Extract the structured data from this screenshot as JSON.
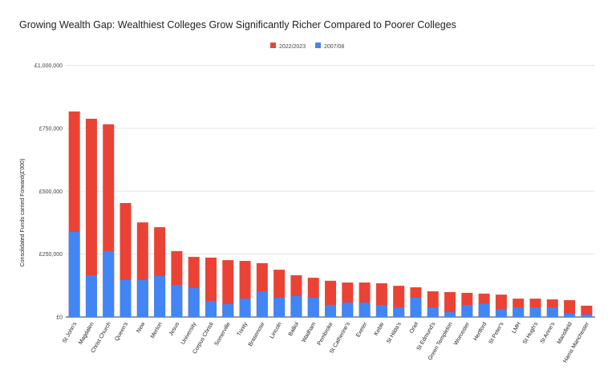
{
  "chart_data": {
    "type": "bar",
    "title": "Growing Wealth Gap: Wealthiest Colleges Grow Significantly Richer Compared to Poorer Colleges",
    "xlabel": "",
    "ylabel": "Consolidated Funds carried Forward(£'000)",
    "ylim": [
      0,
      1000000
    ],
    "yticks": [
      0,
      250000,
      500000,
      750000,
      1000000
    ],
    "ytick_labels": [
      "£0",
      "£250,000",
      "£500,000",
      "£750,000",
      "£1,000,000"
    ],
    "grid": true,
    "legend_placement": "top-center",
    "categories": [
      "St John's",
      "Magdalen",
      "Christ Church",
      "Queen's",
      "New",
      "Merton",
      "Jesus",
      "University",
      "Corpus Christi",
      "Somerville",
      "Trinity",
      "Brasenose",
      "Lincoln",
      "Balliol",
      "Wadham",
      "Pembroke",
      "St Catherine's",
      "Exeter",
      "Keble",
      "St Hilda's",
      "Oriel",
      "St Edmund's",
      "Green Templeton",
      "Worcester",
      "Hertford",
      "St Peter's",
      "LMH",
      "St Hugh's",
      "St Anne's",
      "Mansfield",
      "Harris Manchester"
    ],
    "series": [
      {
        "name": "2022/2023",
        "color": "#ea4335",
        "values": [
          817000,
          788000,
          766000,
          453000,
          376000,
          357000,
          262000,
          239000,
          236000,
          226000,
          223000,
          214000,
          188000,
          166000,
          156000,
          144000,
          137000,
          137000,
          134000,
          124000,
          118000,
          102000,
          99000,
          96000,
          93000,
          89000,
          73000,
          73000,
          70000,
          67000,
          45000
        ]
      },
      {
        "name": "2007/08",
        "color": "#4285f4",
        "values": [
          338000,
          166000,
          262000,
          147000,
          147000,
          163000,
          128000,
          115000,
          64000,
          51000,
          73000,
          102000,
          77000,
          83000,
          77000,
          48000,
          57000,
          57000,
          48000,
          38000,
          77000,
          38000,
          19000,
          48000,
          54000,
          32000,
          38000,
          38000,
          38000,
          13000,
          10000
        ]
      }
    ]
  }
}
